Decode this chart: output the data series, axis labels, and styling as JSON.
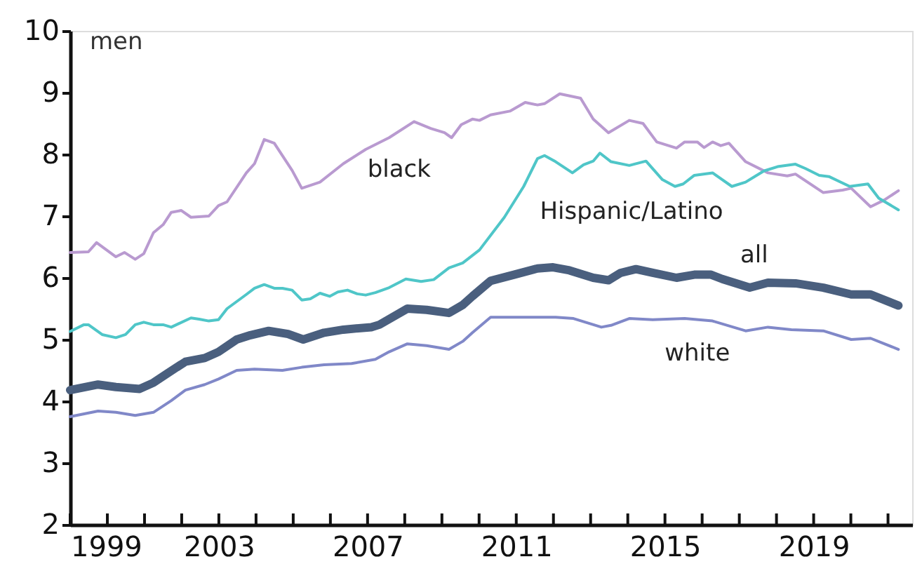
{
  "chart_data": {
    "type": "line",
    "ylabel": "men",
    "xlim": [
      1999,
      2021.65
    ],
    "ylim": [
      2,
      10
    ],
    "yticks": [
      2,
      3,
      4,
      5,
      6,
      7,
      8,
      9,
      10
    ],
    "xticks": [
      1999,
      {
        "value": 2000,
        "label": null
      },
      {
        "value": 2001,
        "label": null
      },
      {
        "value": 2002,
        "label": null
      },
      2003,
      {
        "value": 2004,
        "label": null
      },
      {
        "value": 2005,
        "label": null
      },
      {
        "value": 2006,
        "label": null
      },
      2007,
      {
        "value": 2008,
        "label": null
      },
      {
        "value": 2009,
        "label": null
      },
      {
        "value": 2010,
        "label": null
      },
      2011,
      {
        "value": 2012,
        "label": null
      },
      {
        "value": 2013,
        "label": null
      },
      {
        "value": 2014,
        "label": null
      },
      2015,
      {
        "value": 2016,
        "label": null
      },
      {
        "value": 2017,
        "label": null
      },
      {
        "value": 2018,
        "label": null
      },
      2019,
      {
        "value": 2020,
        "label": null
      },
      {
        "value": 2021,
        "label": null
      }
    ],
    "grid": false,
    "legend": false,
    "series": [
      {
        "name": "black",
        "color": "#b99ad0",
        "x": [
          1999.0,
          1999.49,
          1999.71,
          2000.23,
          2000.46,
          2000.75,
          2000.98,
          2001.24,
          2001.5,
          2001.72,
          2001.99,
          2002.25,
          2002.73,
          2002.99,
          2003.22,
          2003.74,
          2003.96,
          2004.22,
          2004.49,
          2004.97,
          2005.23,
          2005.72,
          2006.35,
          2006.95,
          2007.58,
          2008.25,
          2008.7,
          2009.07,
          2009.26,
          2009.52,
          2009.82,
          2010.01,
          2010.31,
          2010.83,
          2011.24,
          2011.57,
          2011.76,
          2012.17,
          2012.73,
          2013.07,
          2013.48,
          2014.04,
          2014.41,
          2014.78,
          2015.31,
          2015.53,
          2015.87,
          2016.05,
          2016.28,
          2016.5,
          2016.72,
          2017.17,
          2017.77,
          2018.29,
          2018.51,
          2019.26,
          2019.78,
          2020.01,
          2020.53,
          2020.9,
          2021.28
        ],
        "values": [
          6.41,
          6.42,
          6.57,
          6.34,
          6.41,
          6.3,
          6.39,
          6.73,
          6.86,
          7.06,
          7.09,
          6.98,
          7.0,
          7.17,
          7.23,
          7.7,
          7.85,
          8.24,
          8.18,
          7.74,
          7.45,
          7.55,
          7.85,
          8.08,
          8.27,
          8.53,
          8.42,
          8.35,
          8.27,
          8.48,
          8.57,
          8.55,
          8.64,
          8.7,
          8.84,
          8.8,
          8.82,
          8.98,
          8.91,
          8.57,
          8.35,
          8.55,
          8.5,
          8.2,
          8.1,
          8.2,
          8.2,
          8.11,
          8.2,
          8.14,
          8.18,
          7.88,
          7.7,
          7.65,
          7.68,
          7.38,
          7.42,
          7.45,
          7.15,
          7.26,
          7.41
        ]
      },
      {
        "name": "Hispanic/Latino",
        "color": "#4fc6c8",
        "x": [
          1999.0,
          1999.37,
          1999.49,
          1999.86,
          2000.23,
          2000.49,
          2000.75,
          2000.98,
          2001.24,
          2001.5,
          2001.72,
          2002.25,
          2002.47,
          2002.73,
          2002.99,
          2003.22,
          2003.74,
          2003.96,
          2004.22,
          2004.49,
          2004.71,
          2004.97,
          2005.23,
          2005.46,
          2005.72,
          2005.98,
          2006.2,
          2006.46,
          2006.72,
          2006.95,
          2007.21,
          2007.58,
          2008.03,
          2008.44,
          2008.78,
          2009.19,
          2009.56,
          2010.01,
          2010.68,
          2011.2,
          2011.57,
          2011.76,
          2012.06,
          2012.51,
          2012.81,
          2013.07,
          2013.25,
          2013.55,
          2014.04,
          2014.49,
          2014.93,
          2015.27,
          2015.49,
          2015.79,
          2016.28,
          2016.8,
          2017.17,
          2017.66,
          2018.03,
          2018.51,
          2018.78,
          2019.15,
          2019.41,
          2019.97,
          2020.46,
          2020.75,
          2021.28
        ],
        "values": [
          5.13,
          5.24,
          5.24,
          5.08,
          5.03,
          5.08,
          5.24,
          5.28,
          5.24,
          5.24,
          5.2,
          5.35,
          5.33,
          5.3,
          5.32,
          5.5,
          5.73,
          5.83,
          5.89,
          5.83,
          5.83,
          5.8,
          5.64,
          5.66,
          5.75,
          5.7,
          5.77,
          5.8,
          5.74,
          5.72,
          5.76,
          5.84,
          5.98,
          5.94,
          5.97,
          6.16,
          6.24,
          6.45,
          6.98,
          7.48,
          7.93,
          7.98,
          7.88,
          7.7,
          7.83,
          7.89,
          8.02,
          7.88,
          7.82,
          7.89,
          7.59,
          7.48,
          7.52,
          7.66,
          7.7,
          7.48,
          7.55,
          7.73,
          7.8,
          7.84,
          7.77,
          7.66,
          7.64,
          7.48,
          7.52,
          7.29,
          7.1
        ]
      },
      {
        "name": "all",
        "color": "#4a5f7e",
        "x": [
          1999.0,
          1999.75,
          2000.23,
          2000.87,
          2001.24,
          2001.61,
          2002.1,
          2002.62,
          2002.99,
          2003.48,
          2003.85,
          2004.34,
          2004.86,
          2005.27,
          2005.83,
          2006.35,
          2007.1,
          2007.32,
          2008.07,
          2008.59,
          2009.19,
          2009.56,
          2009.82,
          2010.31,
          2010.94,
          2011.57,
          2011.99,
          2012.43,
          2013.07,
          2013.48,
          2013.81,
          2014.22,
          2014.67,
          2015.31,
          2015.79,
          2016.24,
          2016.54,
          2017.28,
          2017.77,
          2018.51,
          2019.26,
          2020.01,
          2020.53,
          2021.28
        ],
        "values": [
          4.18,
          4.27,
          4.23,
          4.2,
          4.3,
          4.45,
          4.64,
          4.7,
          4.8,
          5.0,
          5.07,
          5.14,
          5.09,
          5.0,
          5.11,
          5.16,
          5.2,
          5.24,
          5.5,
          5.48,
          5.43,
          5.56,
          5.7,
          5.95,
          6.05,
          6.15,
          6.17,
          6.12,
          6.0,
          5.96,
          6.08,
          6.14,
          6.08,
          6.0,
          6.05,
          6.05,
          5.98,
          5.84,
          5.92,
          5.91,
          5.84,
          5.73,
          5.73,
          5.55
        ]
      },
      {
        "name": "white",
        "color": "#8088c8",
        "x": [
          1999.0,
          1999.75,
          2000.23,
          2000.75,
          2001.24,
          2001.72,
          2002.1,
          2002.62,
          2002.99,
          2003.48,
          2003.96,
          2004.71,
          2005.23,
          2005.83,
          2006.57,
          2007.21,
          2007.58,
          2008.07,
          2008.59,
          2009.19,
          2009.56,
          2009.82,
          2010.31,
          2010.94,
          2011.57,
          2012.06,
          2012.54,
          2013.29,
          2013.55,
          2014.04,
          2014.67,
          2015.53,
          2016.28,
          2017.17,
          2017.77,
          2018.4,
          2019.26,
          2020.01,
          2020.53,
          2021.28
        ],
        "values": [
          3.75,
          3.84,
          3.82,
          3.77,
          3.82,
          4.01,
          4.18,
          4.27,
          4.36,
          4.5,
          4.52,
          4.5,
          4.55,
          4.59,
          4.61,
          4.68,
          4.8,
          4.93,
          4.9,
          4.84,
          4.97,
          5.11,
          5.36,
          5.36,
          5.36,
          5.36,
          5.34,
          5.2,
          5.23,
          5.34,
          5.32,
          5.34,
          5.3,
          5.14,
          5.2,
          5.16,
          5.14,
          5.0,
          5.02,
          4.84
        ]
      }
    ]
  }
}
